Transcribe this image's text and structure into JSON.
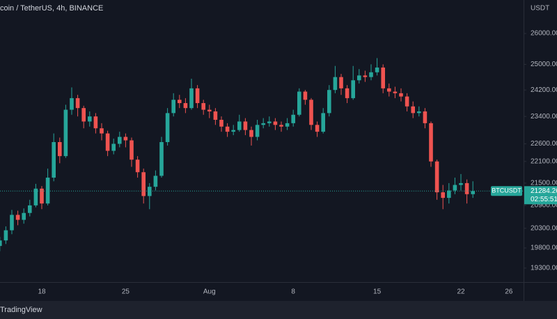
{
  "chart_data": {
    "type": "candlestick",
    "title": "coin / TetherUS, 4h, BINANCE",
    "axis_unit": "USDT",
    "symbol": "BTCUSDT",
    "countdown": "02:55:51",
    "footer": "TradingView",
    "up_color": "#26a69a",
    "down_color": "#ef5350",
    "log_scale": true,
    "grid": false,
    "ylim": [
      18960,
      27130
    ],
    "yticks": [
      {
        "value": 26000,
        "label": "26000.00"
      },
      {
        "value": 25000,
        "label": "25000.00"
      },
      {
        "value": 24200,
        "label": "24200.00"
      },
      {
        "value": 23400,
        "label": "23400.00"
      },
      {
        "value": 22600,
        "label": "22600.00"
      },
      {
        "value": 22100,
        "label": "22100.00"
      },
      {
        "value": 21500,
        "label": "21500.00"
      },
      {
        "value": 20900,
        "label": "20900.00"
      },
      {
        "value": 20300,
        "label": "20300.00"
      },
      {
        "value": 19800,
        "label": "19800.00"
      },
      {
        "value": 19300,
        "label": "19300.00"
      }
    ],
    "categories": [
      null,
      null,
      null,
      null,
      null,
      null,
      null,
      "18",
      null,
      null,
      null,
      null,
      null,
      null,
      null,
      null,
      null,
      null,
      null,
      null,
      null,
      "25",
      null,
      null,
      null,
      null,
      null,
      null,
      null,
      null,
      null,
      null,
      null,
      null,
      null,
      "Aug",
      null,
      null,
      null,
      null,
      null,
      null,
      null,
      null,
      null,
      null,
      null,
      null,
      null,
      "8",
      null,
      null,
      null,
      null,
      null,
      null,
      null,
      null,
      null,
      null,
      null,
      null,
      null,
      "15",
      null,
      null,
      null,
      null,
      null,
      null,
      null,
      null,
      null,
      null,
      null,
      null,
      null,
      "22",
      null,
      null,
      null,
      null,
      null,
      null,
      null,
      "26"
    ],
    "open": [
      19850,
      19990,
      20250,
      20650,
      20520,
      20700,
      20900,
      21350,
      20950,
      21650,
      22650,
      22250,
      23600,
      23950,
      23650,
      23250,
      23400,
      23050,
      22900,
      22400,
      22600,
      22800,
      22700,
      22150,
      21800,
      21150,
      21400,
      21700,
      22650,
      23500,
      23900,
      23800,
      23650,
      24250,
      23800,
      23600,
      23550,
      23300,
      23100,
      22950,
      23000,
      23250,
      23000,
      22800,
      23150,
      23200,
      23250,
      23150,
      23100,
      23200,
      23450,
      24150,
      23900,
      23150,
      22950,
      23500,
      24200,
      24600,
      24250,
      23950,
      24500,
      24650,
      24600,
      24750,
      24900,
      24250,
      24150,
      24100,
      24000,
      23700,
      23500,
      23550,
      23200,
      22100,
      21250,
      21100,
      21300,
      21450,
      21500,
      21200,
      null,
      null,
      null,
      null,
      null,
      null
    ],
    "high": [
      20080,
      20350,
      20780,
      20760,
      20820,
      21050,
      21480,
      21420,
      21900,
      22900,
      22780,
      23750,
      24280,
      24050,
      23720,
      23550,
      23500,
      23200,
      22980,
      22750,
      22950,
      22900,
      22780,
      22250,
      21900,
      21500,
      21850,
      22800,
      23650,
      24100,
      24050,
      23950,
      24550,
      24350,
      23900,
      23750,
      23650,
      23400,
      23200,
      23150,
      23450,
      23350,
      23100,
      23300,
      23350,
      23400,
      23350,
      23250,
      23350,
      23600,
      24250,
      24200,
      23950,
      23250,
      23650,
      24350,
      24950,
      24700,
      24350,
      24950,
      24850,
      24800,
      25000,
      25200,
      25000,
      24400,
      24300,
      24250,
      24100,
      23850,
      23700,
      23650,
      23250,
      22150,
      21450,
      21500,
      21650,
      21750,
      21600,
      21550,
      null,
      null,
      null,
      null,
      null,
      null
    ],
    "low": [
      19720,
      19900,
      20150,
      20380,
      20420,
      20610,
      20850,
      20800,
      20900,
      21550,
      22050,
      22200,
      23450,
      23400,
      23050,
      23100,
      22900,
      22700,
      22250,
      22300,
      22500,
      22500,
      21950,
      21650,
      20950,
      20800,
      21300,
      21650,
      22550,
      23400,
      23650,
      23500,
      23600,
      23650,
      23450,
      23350,
      23150,
      22950,
      22800,
      22850,
      22950,
      22850,
      22550,
      22700,
      23050,
      23100,
      23000,
      22950,
      23000,
      23100,
      23400,
      23750,
      23000,
      22800,
      22900,
      23400,
      24100,
      24050,
      23800,
      23900,
      24400,
      24450,
      24500,
      24650,
      24100,
      24000,
      23950,
      23850,
      23550,
      23350,
      23400,
      23050,
      21950,
      21050,
      20800,
      20950,
      21200,
      21300,
      20950,
      21100,
      null,
      null,
      null,
      null,
      null,
      null
    ],
    "close": [
      19990,
      20250,
      20650,
      20520,
      20700,
      20900,
      21350,
      20950,
      21650,
      22650,
      22250,
      23600,
      23950,
      23650,
      23250,
      23400,
      23050,
      22900,
      22400,
      22600,
      22800,
      22700,
      22150,
      21800,
      21150,
      21400,
      21700,
      22650,
      23500,
      23900,
      23800,
      23650,
      24250,
      23800,
      23600,
      23550,
      23300,
      23100,
      22950,
      23000,
      23250,
      23000,
      22800,
      23150,
      23200,
      23250,
      23150,
      23100,
      23200,
      23450,
      24150,
      23900,
      23150,
      22950,
      23500,
      24200,
      24600,
      24250,
      23950,
      24500,
      24650,
      24600,
      24750,
      24900,
      24250,
      24150,
      24100,
      24000,
      23700,
      23500,
      23550,
      23200,
      22100,
      21250,
      21100,
      21300,
      21450,
      21500,
      21200,
      21284.26,
      null,
      null,
      null,
      null,
      null,
      null
    ]
  }
}
